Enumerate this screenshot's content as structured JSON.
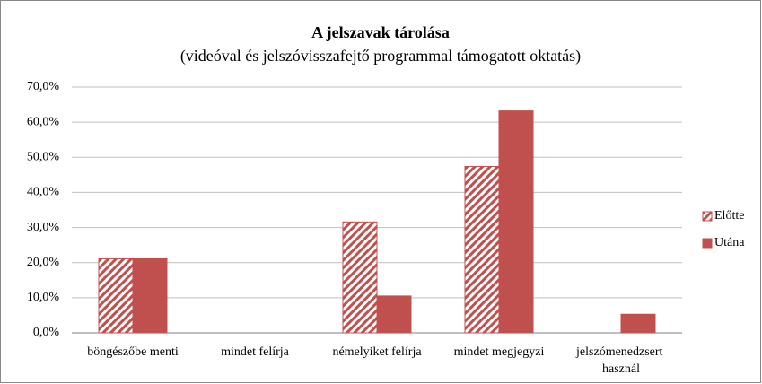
{
  "chart_data": {
    "type": "bar",
    "title": "A jelszavak tárolása",
    "subtitle": "(videóval és jelszóvisszafejtő programmal támogatott oktatás)",
    "categories": [
      "böngészőbe menti",
      "mindet felírja",
      "némelyiket felírja",
      "mindet megjegyzi",
      "jelszómenedzsert használ"
    ],
    "series": [
      {
        "name": "Előtte",
        "color": "#c0504d",
        "pattern": "hatched",
        "values": [
          21.1,
          0,
          31.6,
          47.4,
          0
        ]
      },
      {
        "name": "Utána",
        "color": "#c0504d",
        "pattern": "solid",
        "values": [
          21.1,
          0,
          10.5,
          63.2,
          5.3
        ]
      }
    ],
    "ylim": [
      0,
      70
    ],
    "yticks": [
      {
        "value": 0,
        "label": "0,0%"
      },
      {
        "value": 10,
        "label": "10,0%"
      },
      {
        "value": 20,
        "label": "20,0%"
      },
      {
        "value": 30,
        "label": "30,0%"
      },
      {
        "value": 40,
        "label": "40,0%"
      },
      {
        "value": 50,
        "label": "50,0%"
      },
      {
        "value": 60,
        "label": "60,0%"
      },
      {
        "value": 70,
        "label": "70,0%"
      }
    ],
    "grid": true,
    "legend": "right"
  }
}
